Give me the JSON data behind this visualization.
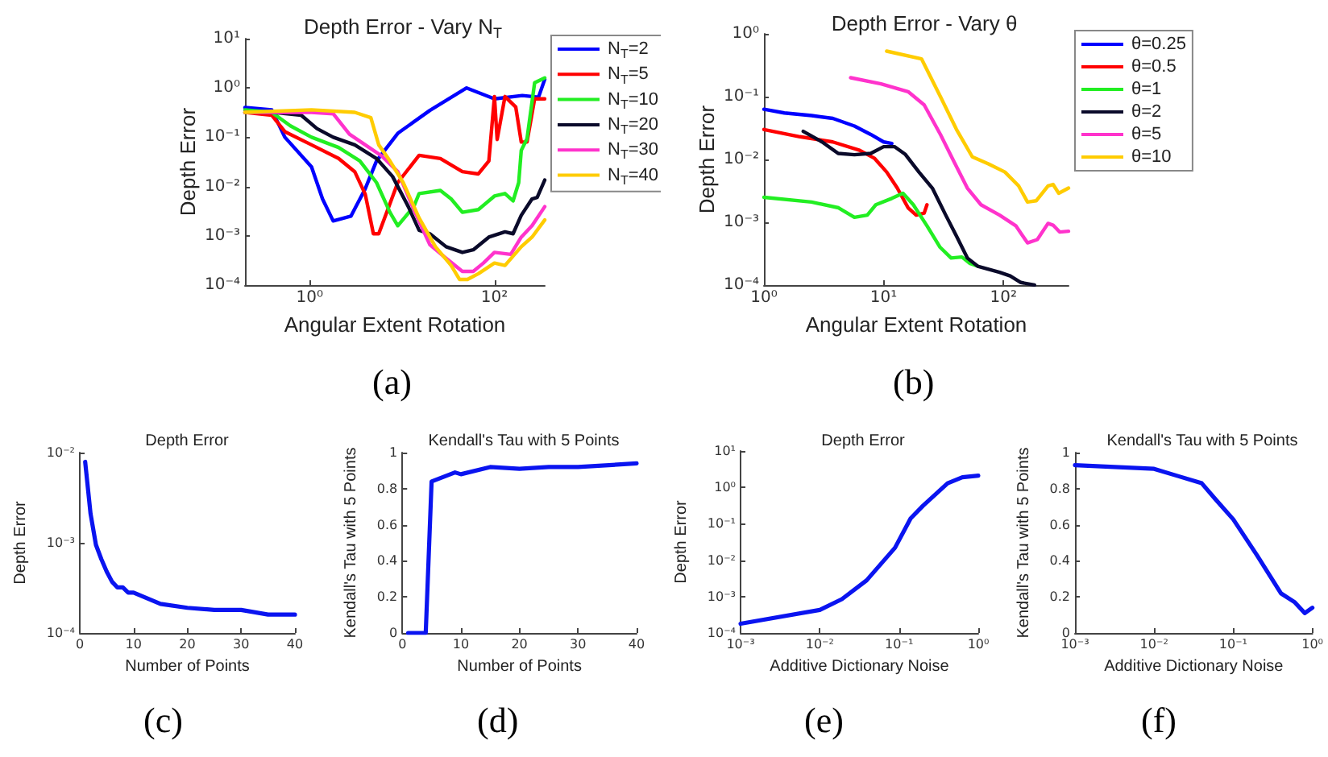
{
  "chart_data": [
    {
      "type": "line",
      "title": "Depth Error - Vary N$_{T}$",
      "xlabel": "Angular Extent Rotation",
      "ylabel": "Depth Error",
      "log": "xy",
      "grid": false,
      "marker": "none",
      "legend": "top right",
      "annotations": [
        "(a)"
      ],
      "xlim": [
        0.2,
        350
      ],
      "xticks": [
        {
          "value": 1,
          "label": "10⁰"
        },
        {
          "value": 100,
          "label": "10²"
        }
      ],
      "ylim": [
        0.0001,
        10
      ],
      "yticks": [
        {
          "value": 0.0001,
          "label": "10⁻⁴"
        },
        {
          "value": 0.001,
          "label": "10⁻³"
        },
        {
          "value": 0.01,
          "label": "10⁻²"
        },
        {
          "value": 0.1,
          "label": "10⁻¹"
        },
        {
          "value": 1,
          "label": "10⁰"
        },
        {
          "value": 10,
          "label": "10¹"
        }
      ],
      "series": [
        {
          "name": "N$_{T}$=2",
          "color": "#0000ff",
          "x": [
            0.2,
            0.39,
            0.54,
            1.05,
            1.38,
            1.8,
            2.8,
            4.0,
            5.3,
            9,
            20,
            50,
            100,
            200,
            300,
            350
          ],
          "values": [
            0.4,
            0.36,
            0.1,
            0.025,
            0.0056,
            0.002,
            0.0025,
            0.009,
            0.033,
            0.12,
            0.35,
            1.0,
            0.6,
            0.7,
            0.65,
            1.5
          ]
        },
        {
          "name": "N$_{T}$=5",
          "color": "#ff0000",
          "x": [
            0.2,
            0.39,
            0.54,
            1.05,
            2.06,
            3.08,
            4.0,
            4.9,
            5.6,
            9.0,
            15.3,
            26,
            45,
            67,
            87,
            100,
            107,
            130,
            170,
            195,
            225,
            272,
            350
          ],
          "values": [
            0.32,
            0.28,
            0.13,
            0.07,
            0.037,
            0.02,
            0.007,
            0.0011,
            0.0011,
            0.012,
            0.043,
            0.037,
            0.02,
            0.018,
            0.033,
            0.67,
            0.09,
            0.67,
            0.41,
            0.08,
            0.08,
            0.6,
            0.6
          ]
        },
        {
          "name": "N$_{T}$=10",
          "color": "#22ee22",
          "x": [
            0.2,
            0.39,
            0.62,
            1.05,
            2.06,
            3.5,
            5.3,
            7.4,
            9.0,
            13.4,
            15.3,
            26,
            34,
            45,
            67,
            100,
            130,
            159,
            183,
            195,
            225,
            272,
            350
          ],
          "values": [
            0.36,
            0.32,
            0.17,
            0.1,
            0.062,
            0.033,
            0.012,
            0.003,
            0.0016,
            0.0039,
            0.0072,
            0.0083,
            0.0056,
            0.003,
            0.0034,
            0.0064,
            0.0072,
            0.0051,
            0.012,
            0.054,
            0.093,
            1.27,
            1.6
          ]
        },
        {
          "name": "N$_{T}$=20",
          "color": "#0a0a2a",
          "x": [
            0.2,
            0.41,
            0.81,
            1.2,
            1.8,
            3.08,
            5.3,
            7.9,
            11.7,
            15.3,
            20,
            30,
            45,
            59,
            87,
            130,
            159,
            195,
            255,
            290,
            350
          ],
          "values": [
            0.32,
            0.32,
            0.28,
            0.15,
            0.1,
            0.07,
            0.037,
            0.016,
            0.0039,
            0.0013,
            0.0011,
            0.0006,
            0.00046,
            0.00052,
            0.00094,
            0.0012,
            0.0011,
            0.0026,
            0.0056,
            0.006,
            0.0135
          ]
        },
        {
          "name": "N$_{T}$=30",
          "color": "#ff33cc",
          "x": [
            0.2,
            1.05,
            1.8,
            2.7,
            4.0,
            6.0,
            9.0,
            13.4,
            20,
            30,
            45,
            59,
            76,
            100,
            150,
            195,
            255,
            350
          ],
          "values": [
            0.32,
            0.32,
            0.3,
            0.115,
            0.07,
            0.042,
            0.02,
            0.0034,
            0.00066,
            0.00035,
            0.00019,
            0.00019,
            0.00028,
            0.00046,
            0.00042,
            0.00094,
            0.0016,
            0.0039
          ]
        },
        {
          "name": "N$_{T}$=40",
          "color": "#ffcc00",
          "x": [
            0.2,
            1.05,
            3.08,
            4.6,
            5.6,
            7.4,
            10.3,
            15.3,
            23,
            34,
            42,
            51,
            67,
            100,
            130,
            195,
            255,
            350
          ],
          "values": [
            0.32,
            0.36,
            0.32,
            0.25,
            0.07,
            0.033,
            0.012,
            0.0023,
            0.0006,
            0.00025,
            0.00013,
            0.00013,
            0.00017,
            0.00028,
            0.00025,
            0.0006,
            0.00094,
            0.0021
          ]
        }
      ]
    },
    {
      "type": "line",
      "title": "Depth Error - Vary θ",
      "xlabel": "Angular Extent Rotation",
      "ylabel": "Depth Error",
      "log": "xy",
      "grid": false,
      "marker": "none",
      "legend": "top right",
      "annotations": [
        "(b)"
      ],
      "xlim": [
        1,
        350
      ],
      "xticks": [
        {
          "value": 1,
          "label": "10⁰"
        },
        {
          "value": 10,
          "label": "10¹"
        },
        {
          "value": 100,
          "label": "10²"
        }
      ],
      "ylim": [
        0.0001,
        1
      ],
      "yticks": [
        {
          "value": 0.0001,
          "label": "10⁻⁴"
        },
        {
          "value": 0.001,
          "label": "10⁻³"
        },
        {
          "value": 0.01,
          "label": "10⁻²"
        },
        {
          "value": 0.1,
          "label": "10⁻¹"
        },
        {
          "value": 1,
          "label": "10⁰"
        }
      ],
      "series": [
        {
          "name": "θ=0.25",
          "color": "#0000ff",
          "x": [
            1,
            1.48,
            2.5,
            3.76,
            5.7,
            7.8,
            10,
            11.7
          ],
          "values": [
            0.063,
            0.055,
            0.05,
            0.045,
            0.034,
            0.025,
            0.019,
            0.018
          ]
        },
        {
          "name": "θ=0.5",
          "color": "#ff0000",
          "x": [
            1,
            2.0,
            3.76,
            6.3,
            8.4,
            10.6,
            13,
            16,
            18.7,
            21.8,
            23
          ],
          "values": [
            0.03,
            0.023,
            0.019,
            0.014,
            0.0104,
            0.0063,
            0.0035,
            0.0017,
            0.0013,
            0.0014,
            0.0019
          ]
        },
        {
          "name": "θ=1",
          "color": "#22ee22",
          "x": [
            1,
            2.5,
            4.2,
            5.7,
            7.3,
            8.6,
            11.7,
            14.5,
            17.7,
            23,
            29.6,
            36.6,
            45,
            52.7,
            61
          ],
          "values": [
            0.0025,
            0.0021,
            0.0017,
            0.0012,
            0.0013,
            0.0019,
            0.0024,
            0.0029,
            0.0019,
            0.00088,
            0.0004,
            0.00027,
            0.00028,
            0.00022,
            0.0002
          ]
        },
        {
          "name": "θ=2",
          "color": "#0a0a2a",
          "x": [
            2.13,
            3.06,
            4.17,
            5.7,
            7.8,
            10,
            12.3,
            15.2,
            19.7,
            25.5,
            33,
            40.6,
            50,
            61,
            93,
            114,
            140,
            182
          ],
          "values": [
            0.028,
            0.019,
            0.0125,
            0.0119,
            0.0125,
            0.016,
            0.016,
            0.012,
            0.0063,
            0.0035,
            0.0013,
            0.0006,
            0.00027,
            0.0002,
            0.00016,
            0.00014,
            0.00011,
            0.0001
          ]
        },
        {
          "name": "θ=5",
          "color": "#ff33cc",
          "x": [
            5.3,
            9.5,
            16,
            21.8,
            29.8,
            38.6,
            50,
            65,
            93,
            127,
            159,
            192,
            236,
            260,
            295,
            350
          ],
          "values": [
            0.2,
            0.16,
            0.12,
            0.074,
            0.025,
            0.0093,
            0.0035,
            0.0019,
            0.0013,
            0.00088,
            0.00047,
            0.00053,
            0.00096,
            0.0009,
            0.0007,
            0.00072
          ]
        },
        {
          "name": "θ=10",
          "color": "#ffcc00",
          "x": [
            10.6,
            20.7,
            29.8,
            40.6,
            55,
            75,
            103,
            134,
            159,
            188,
            236,
            260,
            290,
            350
          ],
          "values": [
            0.53,
            0.4,
            0.1,
            0.03,
            0.011,
            0.0085,
            0.0063,
            0.0038,
            0.0021,
            0.0022,
            0.0038,
            0.004,
            0.0029,
            0.0035
          ]
        }
      ]
    },
    {
      "type": "line",
      "title": "Depth Error",
      "xlabel": "Number of Points",
      "ylabel": "Depth Error",
      "log": "y",
      "grid": false,
      "marker": "none",
      "annotations": [
        "(c)"
      ],
      "xlim": [
        0,
        40
      ],
      "xticks": [
        0,
        10,
        20,
        30,
        40
      ],
      "ylim": [
        0.0001,
        0.01
      ],
      "yticks": [
        {
          "value": 0.0001,
          "label": "10⁻⁴"
        },
        {
          "value": 0.001,
          "label": "10⁻³"
        },
        {
          "value": 0.01,
          "label": "10⁻²"
        }
      ],
      "series": [
        {
          "color": "#0a14f0",
          "x": [
            1,
            2,
            3,
            4,
            5,
            6,
            7,
            8,
            9,
            10,
            15,
            20,
            25,
            30,
            35,
            40
          ],
          "values": [
            0.0079,
            0.0021,
            0.00095,
            0.00066,
            0.00048,
            0.00037,
            0.00032,
            0.00032,
            0.00028,
            0.00028,
            0.00021,
            0.00019,
            0.00018,
            0.00018,
            0.00016,
            0.00016
          ]
        }
      ]
    },
    {
      "type": "line",
      "title": "Kendall's Tau with 5 Points",
      "xlabel": "Number of Points",
      "ylabel": "Kendall's Tau with 5 Points",
      "grid": false,
      "marker": "none",
      "annotations": [
        "(d)"
      ],
      "xlim": [
        0,
        40
      ],
      "xticks": [
        0,
        10,
        20,
        30,
        40
      ],
      "ylim": [
        0,
        1
      ],
      "yticks": [
        0,
        0.2,
        0.4,
        0.6,
        0.8,
        1
      ],
      "series": [
        {
          "color": "#0a14f0",
          "x": [
            1,
            2,
            3,
            4,
            5,
            9,
            10,
            15,
            20,
            25,
            30,
            40
          ],
          "values": [
            0,
            0,
            0,
            0,
            0.84,
            0.89,
            0.88,
            0.92,
            0.91,
            0.92,
            0.92,
            0.94
          ]
        }
      ]
    },
    {
      "type": "line",
      "title": "Depth Error",
      "xlabel": "Additive Dictionary Noise",
      "ylabel": "Depth Error",
      "log": "xy",
      "grid": false,
      "marker": "none",
      "annotations": [
        "(e)"
      ],
      "xlim": [
        0.001,
        1
      ],
      "xticks": [
        {
          "value": 0.001,
          "label": "10⁻³"
        },
        {
          "value": 0.01,
          "label": "10⁻²"
        },
        {
          "value": 0.1,
          "label": "10⁻¹"
        },
        {
          "value": 1,
          "label": "10⁰"
        }
      ],
      "ylim": [
        0.0001,
        10
      ],
      "yticks": [
        {
          "value": 0.0001,
          "label": "10⁻⁴"
        },
        {
          "value": 0.001,
          "label": "10⁻³"
        },
        {
          "value": 0.01,
          "label": "10⁻²"
        },
        {
          "value": 0.1,
          "label": "10⁻¹"
        },
        {
          "value": 1,
          "label": "10⁰"
        },
        {
          "value": 10,
          "label": "10¹"
        }
      ],
      "series": [
        {
          "color": "#0a14f0",
          "x": [
            0.001,
            0.01,
            0.019,
            0.039,
            0.089,
            0.14,
            0.2,
            0.41,
            0.63,
            1
          ],
          "values": [
            0.00018,
            0.00043,
            0.00085,
            0.0028,
            0.022,
            0.14,
            0.31,
            1.3,
            1.9,
            2.1
          ]
        }
      ]
    },
    {
      "type": "line",
      "title": "Kendall's Tau with 5 Points",
      "xlabel": "Additive Dictionary Noise",
      "ylabel": "Kendall's Tau with 5 Points",
      "log": "x",
      "grid": false,
      "marker": "none",
      "annotations": [
        "(f)"
      ],
      "xlim": [
        0.001,
        1
      ],
      "xticks": [
        {
          "value": 0.001,
          "label": "10⁻³"
        },
        {
          "value": 0.01,
          "label": "10⁻²"
        },
        {
          "value": 0.1,
          "label": "10⁻¹"
        },
        {
          "value": 1,
          "label": "10⁰"
        }
      ],
      "ylim": [
        0,
        1
      ],
      "yticks": [
        0,
        0.2,
        0.4,
        0.6,
        0.8,
        1
      ],
      "series": [
        {
          "color": "#0a14f0",
          "x": [
            0.001,
            0.01,
            0.02,
            0.04,
            0.06,
            0.1,
            0.2,
            0.4,
            0.6,
            0.8,
            1
          ],
          "values": [
            0.93,
            0.91,
            0.87,
            0.83,
            0.74,
            0.63,
            0.43,
            0.22,
            0.17,
            0.11,
            0.14
          ]
        }
      ]
    }
  ]
}
